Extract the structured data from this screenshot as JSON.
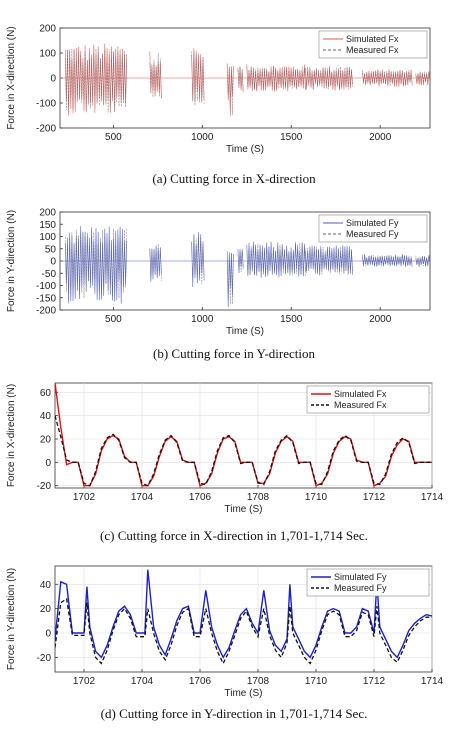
{
  "chart_data": [
    {
      "type": "line",
      "caption": "(a) Cutting force in X-direction",
      "xlabel": "Time (S)",
      "ylabel": "Force in X-direction (N)",
      "xlim": [
        200,
        2280
      ],
      "ylim": [
        -200,
        200
      ],
      "xticks": [
        "500",
        "1000",
        "1500",
        "2000"
      ],
      "yticks": [
        "200",
        "100",
        "0",
        "-100",
        "-200"
      ],
      "xtick_values": [
        500,
        1000,
        1500,
        2000
      ],
      "ytick_values": [
        200,
        100,
        0,
        -100,
        -200
      ],
      "legend_position": "top-right",
      "series": [
        {
          "name": "Simulated Fx",
          "color": "#e05555",
          "style": "solid"
        },
        {
          "name": "Measured Fx",
          "color": "#666666",
          "style": "dashed"
        }
      ],
      "segments": [
        {
          "x": [
            230,
            575
          ],
          "amp_pos": 140,
          "amp_neg": -150
        },
        {
          "x": [
            705,
            770
          ],
          "amp_pos": 110,
          "amp_neg": -90
        },
        {
          "x": [
            940,
            1010
          ],
          "amp_pos": 130,
          "amp_neg": -120
        },
        {
          "x": [
            1140,
            1175
          ],
          "amp_pos": 60,
          "amp_neg": -160
        },
        {
          "x": [
            1200,
            1230
          ],
          "amp_pos": 50,
          "amp_neg": -60
        },
        {
          "x": [
            1250,
            1580
          ],
          "amp_pos": 55,
          "amp_neg": -55
        },
        {
          "x": [
            1580,
            1845
          ],
          "amp_pos": 50,
          "amp_neg": -50
        },
        {
          "x": [
            1900,
            2180
          ],
          "amp_pos": 35,
          "amp_neg": -35
        },
        {
          "x": [
            2200,
            2280
          ],
          "amp_pos": 30,
          "amp_neg": -30
        }
      ]
    },
    {
      "type": "line",
      "caption": "(b) Cutting force in Y-direction",
      "xlabel": "Time (S)",
      "ylabel": "Force in Y-direction (N)",
      "xlim": [
        200,
        2280
      ],
      "ylim": [
        -200,
        200
      ],
      "xticks": [
        "500",
        "1000",
        "1500",
        "2000"
      ],
      "yticks": [
        "200",
        "150",
        "100",
        "50",
        "0",
        "-50",
        "-100",
        "-150",
        "-200"
      ],
      "xtick_values": [
        500,
        1000,
        1500,
        2000
      ],
      "ytick_values": [
        200,
        150,
        100,
        50,
        0,
        -50,
        -100,
        -150,
        -200
      ],
      "legend_position": "top-right",
      "series": [
        {
          "name": "Simulated Fy",
          "color": "#4a5bd0",
          "style": "solid"
        },
        {
          "name": "Measured Fy",
          "color": "#666666",
          "style": "dashed"
        }
      ],
      "segments": [
        {
          "x": [
            230,
            575
          ],
          "amp_pos": 150,
          "amp_neg": -175
        },
        {
          "x": [
            705,
            770
          ],
          "amp_pos": 80,
          "amp_neg": -90
        },
        {
          "x": [
            940,
            1010
          ],
          "amp_pos": 130,
          "amp_neg": -110
        },
        {
          "x": [
            1140,
            1175
          ],
          "amp_pos": 40,
          "amp_neg": -200
        },
        {
          "x": [
            1200,
            1230
          ],
          "amp_pos": 50,
          "amp_neg": -50
        },
        {
          "x": [
            1250,
            1580
          ],
          "amp_pos": 80,
          "amp_neg": -70
        },
        {
          "x": [
            1580,
            1845
          ],
          "amp_pos": 65,
          "amp_neg": -60
        },
        {
          "x": [
            1900,
            2180
          ],
          "amp_pos": 30,
          "amp_neg": -25
        },
        {
          "x": [
            2200,
            2280
          ],
          "amp_pos": 25,
          "amp_neg": -25
        }
      ]
    },
    {
      "type": "line",
      "caption": "(c) Cutting force in X-direction in 1,701-1,714 Sec.",
      "xlabel": "Time (S)",
      "ylabel": "Force in X-direction (N)",
      "xlim": [
        1701,
        1714
      ],
      "ylim": [
        -22,
        68
      ],
      "xticks": [
        "1702",
        "1704",
        "1706",
        "1708",
        "1710",
        "1712",
        "1714"
      ],
      "yticks": [
        "60",
        "40",
        "20",
        "0",
        "-20"
      ],
      "xtick_values": [
        1702,
        1704,
        1706,
        1708,
        1710,
        1712,
        1714
      ],
      "ytick_values": [
        60,
        40,
        20,
        0,
        -20
      ],
      "legend_position": "top-right",
      "series": [
        {
          "name": "Simulated Fx",
          "color": "#e01010",
          "style": "solid",
          "x": [
            1701.0,
            1701.2,
            1701.4,
            1701.6,
            1701.8,
            1702.0,
            1702.2,
            1702.4,
            1702.6,
            1702.8,
            1703.0,
            1703.2,
            1703.4,
            1703.6,
            1703.8,
            1704.0,
            1704.2,
            1704.4,
            1704.6,
            1704.8,
            1705.0,
            1705.2,
            1705.4,
            1705.6,
            1705.8,
            1706.0,
            1706.2,
            1706.4,
            1706.6,
            1706.8,
            1707.0,
            1707.2,
            1707.4,
            1707.6,
            1707.8,
            1708.0,
            1708.2,
            1708.4,
            1708.6,
            1708.8,
            1709.0,
            1709.2,
            1709.4,
            1709.6,
            1709.8,
            1710.0,
            1710.2,
            1710.4,
            1710.6,
            1710.8,
            1711.0,
            1711.2,
            1711.4,
            1711.6,
            1711.8,
            1712.0,
            1712.2,
            1712.4,
            1712.6,
            1712.8,
            1713.0,
            1713.2,
            1713.4,
            1713.6,
            1713.8,
            1714.0
          ],
          "y": [
            68,
            30,
            -2,
            0,
            0,
            -20,
            -20,
            -10,
            10,
            20,
            23,
            20,
            5,
            0,
            0,
            -20,
            -20,
            -12,
            5,
            18,
            22,
            18,
            2,
            0,
            0,
            -20,
            -18,
            -10,
            8,
            20,
            22,
            18,
            0,
            0,
            0,
            -18,
            -18,
            -10,
            8,
            18,
            22,
            18,
            0,
            0,
            0,
            -20,
            -18,
            -10,
            8,
            18,
            22,
            20,
            2,
            0,
            0,
            -20,
            -18,
            -12,
            5,
            15,
            20,
            18,
            0,
            0,
            0,
            0
          ]
        },
        {
          "name": "Measured Fx",
          "color": "#111111",
          "style": "dashed",
          "x": [
            1701.0,
            1701.2,
            1701.4,
            1701.6,
            1701.8,
            1702.0,
            1702.2,
            1702.4,
            1702.6,
            1702.8,
            1703.0,
            1703.2,
            1703.4,
            1703.6,
            1703.8,
            1704.0,
            1704.2,
            1704.4,
            1704.6,
            1704.8,
            1705.0,
            1705.2,
            1705.4,
            1705.6,
            1705.8,
            1706.0,
            1706.2,
            1706.4,
            1706.6,
            1706.8,
            1707.0,
            1707.2,
            1707.4,
            1707.6,
            1707.8,
            1708.0,
            1708.2,
            1708.4,
            1708.6,
            1708.8,
            1709.0,
            1709.2,
            1709.4,
            1709.6,
            1709.8,
            1710.0,
            1710.2,
            1710.4,
            1710.6,
            1710.8,
            1711.0,
            1711.2,
            1711.4,
            1711.6,
            1711.8,
            1712.0,
            1712.2,
            1712.4,
            1712.6,
            1712.8,
            1713.0,
            1713.2,
            1713.4,
            1713.6,
            1713.8,
            1714.0
          ],
          "y": [
            40,
            22,
            2,
            0,
            0,
            -18,
            -20,
            -8,
            12,
            21,
            24,
            19,
            4,
            0,
            0,
            -18,
            -20,
            -10,
            7,
            19,
            23,
            17,
            1,
            0,
            0,
            -18,
            -19,
            -8,
            10,
            21,
            23,
            17,
            -1,
            0,
            0,
            -17,
            -19,
            -8,
            10,
            19,
            23,
            17,
            -1,
            0,
            0,
            -18,
            -19,
            -8,
            10,
            19,
            23,
            19,
            1,
            0,
            0,
            -18,
            -19,
            -10,
            7,
            17,
            21,
            17,
            -1,
            0,
            0,
            0
          ]
        }
      ]
    },
    {
      "type": "line",
      "caption": "(d) Cutting force in Y-direction in 1,701-1,714 Sec.",
      "xlabel": "Time (S)",
      "ylabel": "Force in Y-direction (N)",
      "xlim": [
        1701,
        1714
      ],
      "ylim": [
        -32,
        55
      ],
      "xticks": [
        "1702",
        "1704",
        "1706",
        "1708",
        "1710",
        "1712",
        "1714"
      ],
      "yticks": [
        "40",
        "20",
        "0",
        "-20"
      ],
      "xtick_values": [
        1702,
        1704,
        1706,
        1708,
        1710,
        1712,
        1714
      ],
      "ytick_values": [
        40,
        20,
        0,
        -20
      ],
      "legend_position": "top-right",
      "series": [
        {
          "name": "Simulated Fy",
          "color": "#1a22c8",
          "style": "solid",
          "x": [
            1701.0,
            1701.2,
            1701.4,
            1701.6,
            1701.8,
            1702.0,
            1702.1,
            1702.2,
            1702.4,
            1702.6,
            1702.8,
            1703.0,
            1703.2,
            1703.4,
            1703.6,
            1703.8,
            1704.0,
            1704.1,
            1704.2,
            1704.4,
            1704.6,
            1704.8,
            1705.0,
            1705.2,
            1705.4,
            1705.6,
            1705.8,
            1706.0,
            1706.2,
            1706.4,
            1706.6,
            1706.8,
            1707.0,
            1707.2,
            1707.4,
            1707.6,
            1707.8,
            1708.0,
            1708.2,
            1708.4,
            1708.6,
            1708.8,
            1709.0,
            1709.1,
            1709.2,
            1709.4,
            1709.6,
            1709.8,
            1710.0,
            1710.2,
            1710.4,
            1710.6,
            1710.8,
            1711.0,
            1711.2,
            1711.4,
            1711.6,
            1711.8,
            1712.0,
            1712.1,
            1712.2,
            1712.4,
            1712.6,
            1712.8,
            1713.0,
            1713.2,
            1713.4,
            1713.6,
            1713.8,
            1714.0
          ],
          "y": [
            -5,
            42,
            40,
            0,
            0,
            0,
            38,
            5,
            -15,
            -20,
            -10,
            5,
            18,
            22,
            15,
            0,
            0,
            0,
            52,
            5,
            -10,
            -18,
            -5,
            10,
            20,
            22,
            0,
            0,
            35,
            5,
            -10,
            -20,
            -12,
            2,
            15,
            20,
            8,
            0,
            35,
            2,
            -10,
            -15,
            -5,
            40,
            5,
            -5,
            -15,
            -20,
            -10,
            5,
            18,
            20,
            18,
            0,
            0,
            5,
            20,
            18,
            0,
            42,
            5,
            -5,
            -15,
            -20,
            -10,
            2,
            8,
            12,
            15,
            14
          ]
        },
        {
          "name": "Measured Fy",
          "color": "#111111",
          "style": "dashed",
          "x": [
            1701.0,
            1701.2,
            1701.4,
            1701.6,
            1701.8,
            1702.0,
            1702.1,
            1702.2,
            1702.4,
            1702.6,
            1702.8,
            1703.0,
            1703.2,
            1703.4,
            1703.6,
            1703.8,
            1704.0,
            1704.1,
            1704.2,
            1704.4,
            1704.6,
            1704.8,
            1705.0,
            1705.2,
            1705.4,
            1705.6,
            1705.8,
            1706.0,
            1706.2,
            1706.4,
            1706.6,
            1706.8,
            1707.0,
            1707.2,
            1707.4,
            1707.6,
            1707.8,
            1708.0,
            1708.2,
            1708.4,
            1708.6,
            1708.8,
            1709.0,
            1709.1,
            1709.2,
            1709.4,
            1709.6,
            1709.8,
            1710.0,
            1710.2,
            1710.4,
            1710.6,
            1710.8,
            1711.0,
            1711.2,
            1711.4,
            1711.6,
            1711.8,
            1712.0,
            1712.1,
            1712.2,
            1712.4,
            1712.6,
            1712.8,
            1713.0,
            1713.2,
            1713.4,
            1713.6,
            1713.8,
            1714.0
          ],
          "y": [
            -12,
            25,
            28,
            -2,
            -2,
            -2,
            25,
            0,
            -20,
            -25,
            -14,
            2,
            15,
            20,
            12,
            -3,
            -3,
            -3,
            20,
            0,
            -15,
            -22,
            -10,
            6,
            17,
            20,
            -3,
            -3,
            20,
            0,
            -15,
            -25,
            -15,
            -2,
            12,
            18,
            5,
            -3,
            20,
            -2,
            -14,
            -20,
            -8,
            22,
            0,
            -10,
            -20,
            -25,
            -14,
            2,
            15,
            18,
            15,
            -3,
            -3,
            2,
            17,
            15,
            -3,
            22,
            0,
            -10,
            -20,
            -24,
            -14,
            -2,
            5,
            10,
            13,
            13
          ]
        }
      ]
    }
  ]
}
